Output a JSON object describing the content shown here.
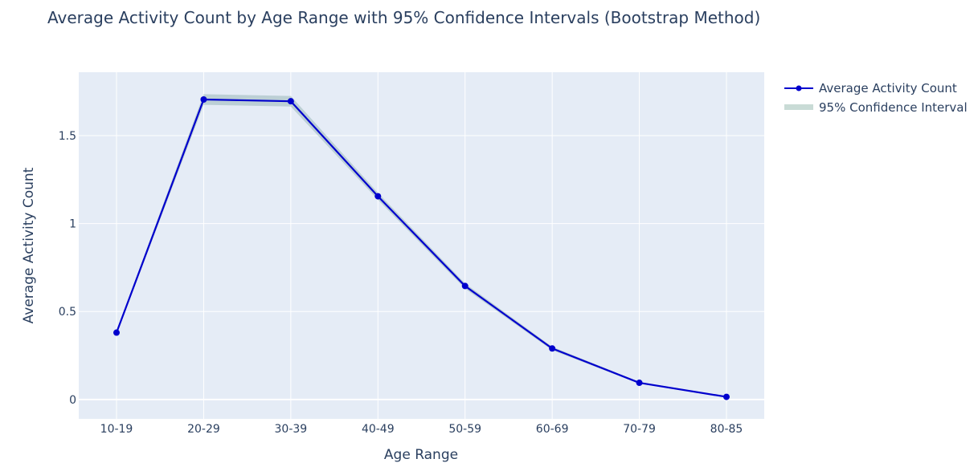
{
  "chart_data": {
    "type": "line",
    "title": "Average Activity Count by Age Range with 95% Confidence Intervals (Bootstrap Method)",
    "xlabel": "Age Range",
    "ylabel": "Average Activity Count",
    "categories": [
      "10-19",
      "20-29",
      "30-39",
      "40-49",
      "50-59",
      "60-69",
      "70-79",
      "80-85"
    ],
    "series": [
      {
        "name": "Average Activity Count",
        "values": [
          0.38,
          1.705,
          1.695,
          1.155,
          0.645,
          0.29,
          0.095,
          0.015
        ],
        "color": "#0000cd"
      }
    ],
    "confidence_interval": {
      "name": "95% Confidence Interval",
      "lower": [
        0.37,
        1.675,
        1.665,
        1.135,
        0.63,
        0.28,
        0.09,
        0.012
      ],
      "upper": [
        0.39,
        1.735,
        1.725,
        1.175,
        0.66,
        0.3,
        0.1,
        0.018
      ],
      "color": "#7fa6a6"
    },
    "ylim": [
      -0.11,
      1.86
    ],
    "yticks": [
      0,
      0.5,
      1,
      1.5
    ],
    "ytick_labels": [
      "0",
      "0.5",
      "1",
      "1.5"
    ],
    "grid": true,
    "legend_position": "top-right",
    "plot_background": "#e5ecf6"
  }
}
